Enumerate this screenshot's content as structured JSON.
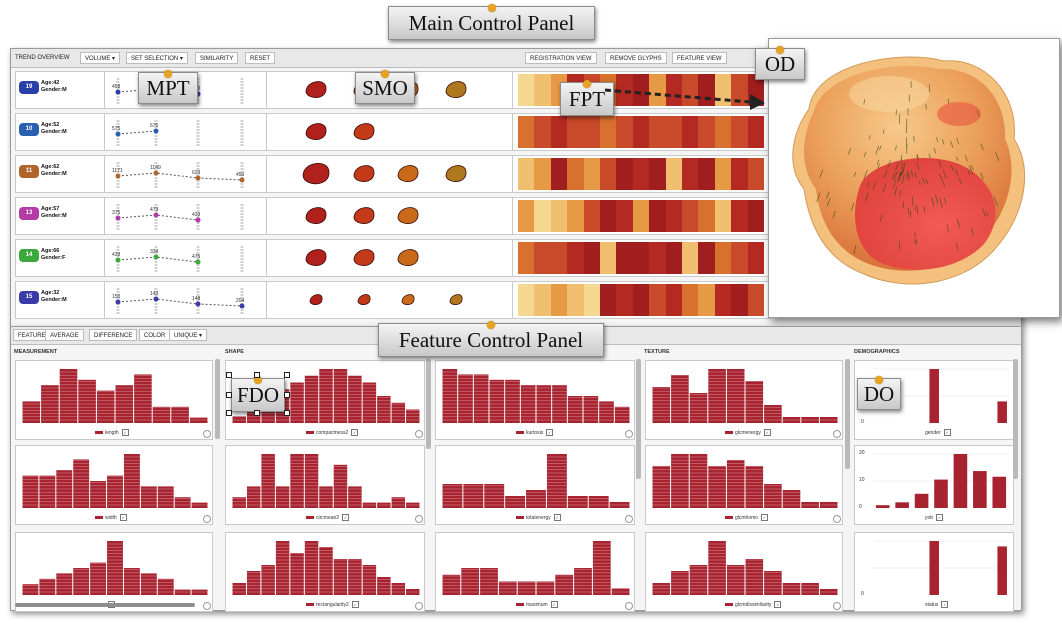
{
  "callouts": {
    "main": "Main Control Panel",
    "feature": "Feature Control Panel",
    "mpt": "MPT",
    "smo": "SMO",
    "fpt": "FPT",
    "od": "OD",
    "fdo": "FDO",
    "do": "DO"
  },
  "main_toolbar": {
    "trend": "TREND OVERVIEW",
    "volume": "VOLUME",
    "set_selection": "SET SELECTION",
    "similarity": "SIMILARITY",
    "reset": "RESET",
    "registration": "REGISTRATION VIEW",
    "remove_glyphs": "REMOVE GLYPHS",
    "feature_view": "FEATURE VIEW"
  },
  "patients": [
    {
      "id": "19",
      "age": "Age:42",
      "gender": "Gender:M",
      "color": "#2a3fa8",
      "values": [
        "458",
        "4",
        "570"
      ]
    },
    {
      "id": "10",
      "age": "Age:52",
      "gender": "Gender:M",
      "color": "#2a5fb0",
      "values": [
        "575",
        "676"
      ]
    },
    {
      "id": "11",
      "age": "Age:62",
      "gender": "Gender:M",
      "color": "#b0652a",
      "values": [
        "1171",
        "1149",
        "623",
        "450"
      ]
    },
    {
      "id": "13",
      "age": "Age:57",
      "gender": "Gender:M",
      "color": "#b43aa6",
      "values": [
        "375",
        "479",
        "433"
      ]
    },
    {
      "id": "14",
      "age": "Age:66",
      "gender": "Gender:F",
      "color": "#3aa83a",
      "values": [
        "439",
        "334",
        "475"
      ]
    },
    {
      "id": "15",
      "age": "Age:32",
      "gender": "Gender:M",
      "color": "#3a3aa8",
      "values": [
        "150",
        "143",
        "148",
        "204"
      ]
    }
  ],
  "feature_toolbar": {
    "feature": "FEATURE",
    "average": "AVERAGE",
    "difference": "DIFFERENCE",
    "color": "COLOR",
    "unique": "UNIQUE"
  },
  "columns": {
    "measurement": "MEASUREMENT",
    "shape": "SHAPE",
    "texture": "TEXTURE",
    "demographics": "DEMOGRAPHICS"
  },
  "histograms": {
    "length": "length",
    "width": "width",
    "m3": "",
    "compactness": "compactness2",
    "circmean": "circmean2",
    "rectangularity": "rectangularity2",
    "kurtosis": "kurtosis",
    "totalenergy": "totalenergy",
    "maximum": "maximum",
    "glcmenergy": "glcmenergy",
    "glcmhomo": "glcmhomo",
    "glcmdissimilarity": "glcmdissimilarity",
    "gender": "gender",
    "yob": "yob",
    "status": "status"
  },
  "demo_axes": {
    "y0": "0",
    "y10": "10",
    "y20": "20"
  },
  "colors": {
    "bar": "#a82330",
    "accent": "#e8a320",
    "heat_dark": "#a01e1e",
    "heat_light": "#f5d890"
  }
}
